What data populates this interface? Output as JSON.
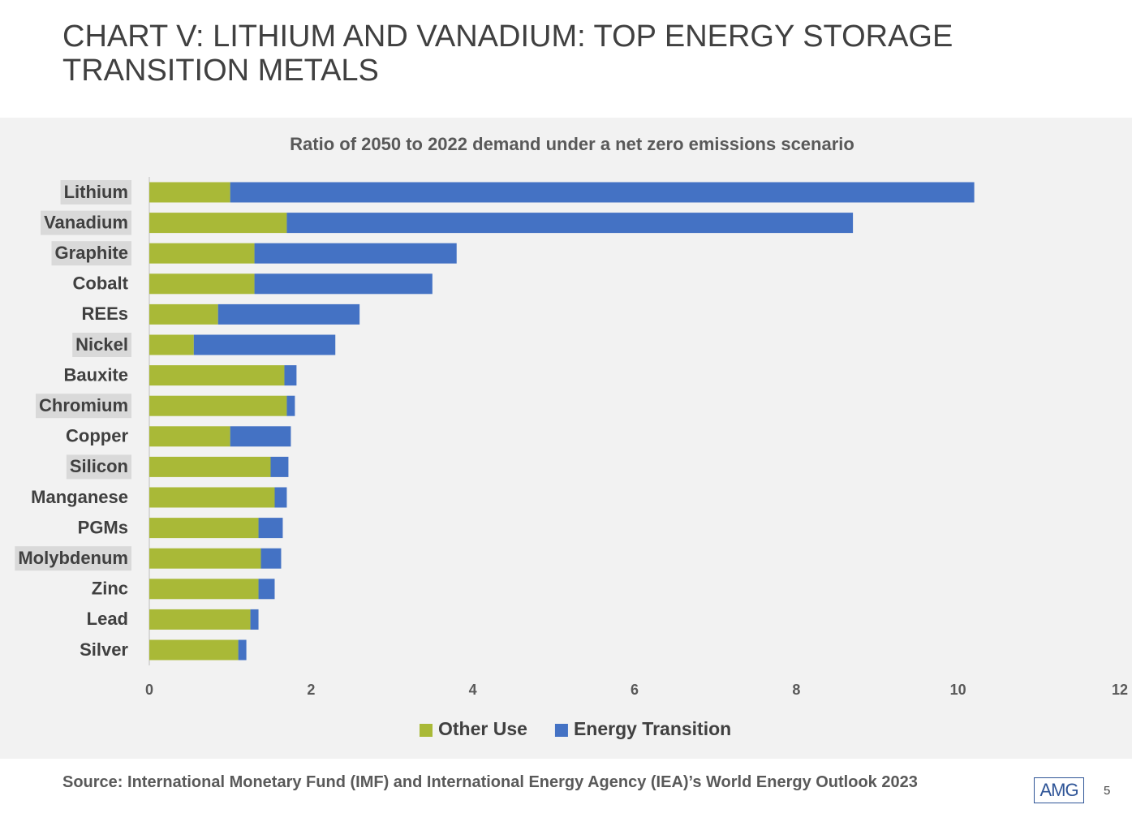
{
  "header": {
    "title": "CHART V: LITHIUM AND VANADIUM: TOP ENERGY STORAGE TRANSITION METALS"
  },
  "chart_data": {
    "type": "stacked-bar",
    "orientation": "horizontal",
    "title": "Ratio of 2050 to 2022 demand under a net zero emissions scenario",
    "categories": [
      "Lithium",
      "Vanadium",
      "Graphite",
      "Cobalt",
      "REEs",
      "Nickel",
      "Bauxite",
      "Chromium",
      "Copper",
      "Silicon",
      "Manganese",
      "PGMs",
      "Molybdenum",
      "Zinc",
      "Lead",
      "Silver"
    ],
    "series": [
      {
        "name": "Other Use",
        "color": "#a9b937",
        "values": [
          1.0,
          1.7,
          1.3,
          1.3,
          0.85,
          0.55,
          1.67,
          1.7,
          1.0,
          1.5,
          1.55,
          1.35,
          1.38,
          1.35,
          1.25,
          1.1
        ]
      },
      {
        "name": "Energy Transition",
        "color": "#4472c4",
        "values": [
          9.2,
          7.0,
          2.5,
          2.2,
          1.75,
          1.75,
          0.15,
          0.1,
          0.75,
          0.22,
          0.15,
          0.3,
          0.25,
          0.2,
          0.1,
          0.1
        ]
      }
    ],
    "xlim": [
      0,
      12
    ],
    "xticks": [
      0,
      2,
      4,
      6,
      8,
      10,
      12
    ],
    "grid": false,
    "legend": "bottom"
  },
  "footer": {
    "source": "Source: International Monetary Fund (IMF) and International Energy Agency (IEA)’s World Energy Outlook 2023",
    "logo": "AMG",
    "page": "5"
  }
}
